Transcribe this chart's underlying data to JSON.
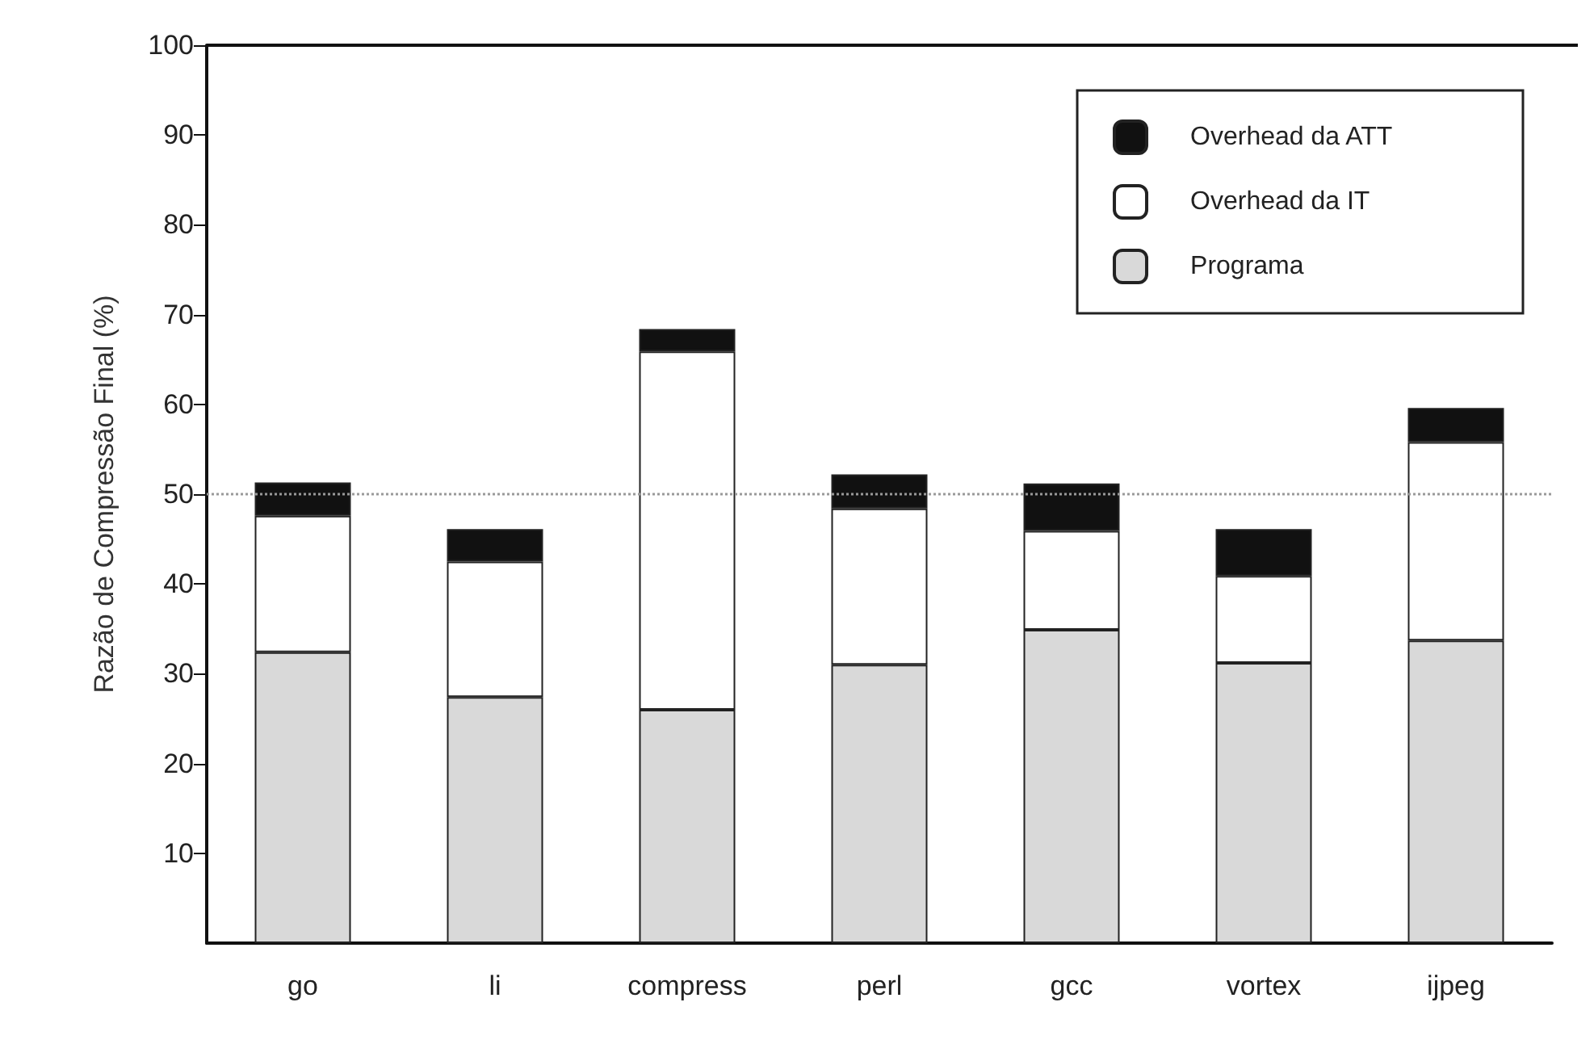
{
  "chart_data": {
    "type": "bar",
    "stacked": true,
    "ylabel": "Razão de Compressão Final (%)",
    "categories": [
      "go",
      "li",
      "compress",
      "perl",
      "gcc",
      "vortex",
      "ijpeg"
    ],
    "series": [
      {
        "name": "Programa",
        "color": "#d9d9d9",
        "values": [
          32.4,
          27.4,
          26,
          31,
          34.9,
          31.2,
          33.7
        ]
      },
      {
        "name": "Overhead da IT",
        "color": "#ffffff",
        "values": [
          15.2,
          15.1,
          39.9,
          17.4,
          11,
          9.7,
          22.1
        ]
      },
      {
        "name": "Overhead da ATT",
        "color": "#111111",
        "values": [
          3.7,
          3.6,
          2.5,
          3.8,
          5.3,
          5.2,
          3.8
        ]
      }
    ],
    "ylim": [
      0,
      100
    ],
    "yticks": [
      10,
      20,
      30,
      40,
      50,
      60,
      70,
      80,
      90,
      100
    ],
    "grid": false,
    "legend": "top right",
    "ref_lines": [
      {
        "axis": "y",
        "value": 50,
        "color": "#999999",
        "line_style": "dotted"
      }
    ]
  }
}
